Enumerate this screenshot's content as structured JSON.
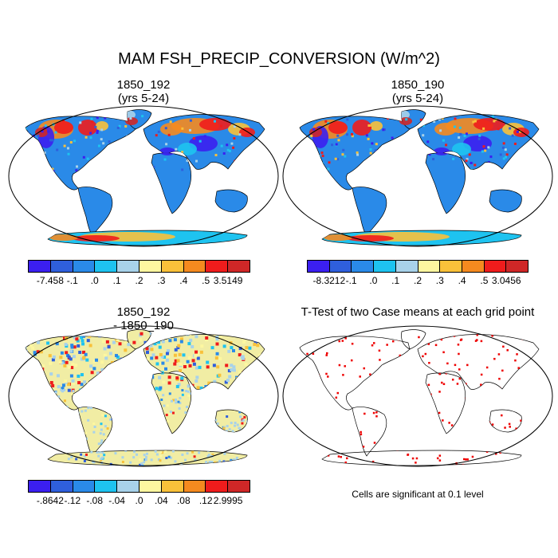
{
  "title": "MAM FSH_PRECIP_CONVERSION (W/m^2)",
  "panels": {
    "top_left": {
      "title1": "1850_192",
      "title2": "(yrs 5-24)"
    },
    "top_right": {
      "title1": "1850_190",
      "title2": "(yrs 5-24)"
    },
    "bottom_left": {
      "title1": "1850_192",
      "title2": "- 1850_190"
    },
    "bottom_right": {
      "title1": "T-Test of two Case means at each grid point"
    }
  },
  "colorbars": {
    "top_left": {
      "colors": [
        "#3b1ff0",
        "#2f5fdc",
        "#2a8ae8",
        "#1ec3f0",
        "#a8d2ea",
        "#fdf7a0",
        "#f9c13a",
        "#f58a1f",
        "#ef1c1c",
        "#cf2727"
      ],
      "labels": [
        "-7.458",
        "-.1",
        ".0",
        ".1",
        ".2",
        ".3",
        ".4",
        ".5",
        "3.5149"
      ]
    },
    "top_right": {
      "colors": [
        "#3b1ff0",
        "#2f5fdc",
        "#2a8ae8",
        "#1ec3f0",
        "#a8d2ea",
        "#fdf7a0",
        "#f9c13a",
        "#f58a1f",
        "#ef1c1c",
        "#cf2727"
      ],
      "labels": [
        "-8.3212",
        "-.1",
        ".0",
        ".1",
        ".2",
        ".3",
        ".4",
        ".5",
        "3.0456"
      ]
    },
    "bottom_left": {
      "colors": [
        "#3b1ff0",
        "#2f5fdc",
        "#2a8ae8",
        "#1ec3f0",
        "#a8d2ea",
        "#fdf7a0",
        "#f9c13a",
        "#f58a1f",
        "#ef1c1c",
        "#cf2727"
      ],
      "labels": [
        "-.8642",
        "-.12",
        "-.08",
        "-.04",
        ".0",
        ".04",
        ".08",
        ".12",
        "2.9995"
      ]
    }
  },
  "footnote": "Cells are significant at 0.1 level",
  "colors": {
    "land_fill": "#2a8ae8",
    "antarctic_fill": "#1ec3f0",
    "diff_fill": "#f1eda4",
    "sig_cells": "#ee0000"
  }
}
